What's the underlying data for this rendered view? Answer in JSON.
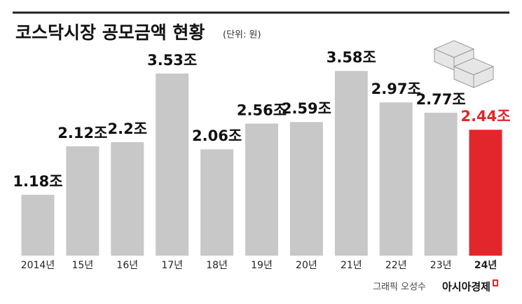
{
  "chart_data": {
    "type": "bar",
    "title": "코스닥시장 공모금액 현황",
    "subtitle": "(단위: 원)",
    "categories": [
      "2014년",
      "15년",
      "16년",
      "17년",
      "18년",
      "19년",
      "20년",
      "21년",
      "22년",
      "23년",
      "24년"
    ],
    "values": [
      1.18,
      2.12,
      2.2,
      3.53,
      2.06,
      2.56,
      2.59,
      3.58,
      2.97,
      2.77,
      2.44
    ],
    "value_labels": [
      "1.18조",
      "2.12조",
      "2.2조",
      "3.53조",
      "2.06조",
      "2.56조",
      "2.59조",
      "3.58조",
      "2.97조",
      "2.77조",
      "2.44조"
    ],
    "colors": [
      "#c8c8c8",
      "#c8c8c8",
      "#c8c8c8",
      "#c8c8c8",
      "#c8c8c8",
      "#c8c8c8",
      "#c8c8c8",
      "#c8c8c8",
      "#c8c8c8",
      "#c8c8c8",
      "#e3262b"
    ],
    "ylim": [
      0,
      4.9
    ],
    "credit": "그래픽 오성수",
    "source": "아시아경제"
  }
}
